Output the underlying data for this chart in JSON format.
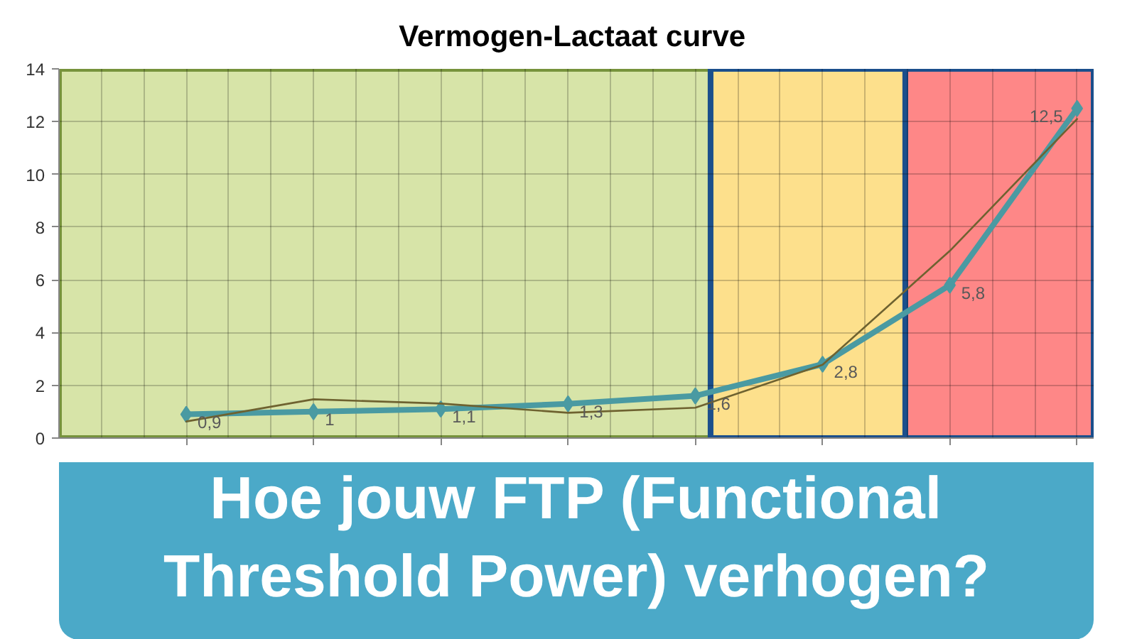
{
  "chart_data": {
    "type": "line",
    "title": "Vermogen-Lactaat  curve",
    "categories": [
      null,
      null,
      null,
      null,
      null,
      null,
      null,
      null
    ],
    "series": [
      {
        "color": "#4a9aa2",
        "marker": "diamond",
        "values": [
          0.9,
          1,
          1.1,
          1.3,
          1.6,
          2.8,
          5.8,
          12.5
        ],
        "value_labels": [
          "0,9",
          "1",
          "1,1",
          "1,3",
          "1,6",
          "2,8",
          "5,8",
          "12,5"
        ]
      },
      {
        "color": "#6e6230",
        "marker": "none",
        "values": [
          0.63,
          1.47,
          1.31,
          0.96,
          1.15,
          2.78,
          7.1,
          12.1
        ]
      }
    ],
    "ylim": [
      0,
      14
    ],
    "yticks": [
      0,
      2,
      4,
      6,
      8,
      10,
      12,
      14
    ],
    "grid": true,
    "annotations": [
      "Hoe jouw FTP (Functional Threshold Power) verhogen?"
    ]
  }
}
